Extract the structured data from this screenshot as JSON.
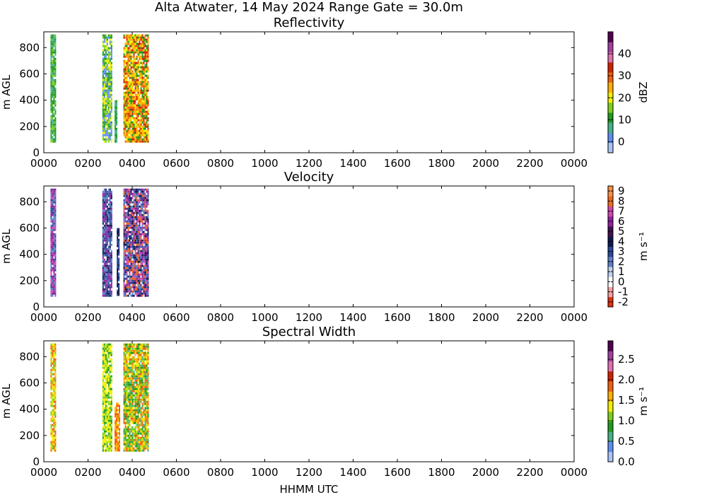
{
  "figure": {
    "title": "Alta Atwater, 14 May 2024 Range Gate = 30.0m",
    "xlabel": "HHMM UTC"
  },
  "chart_data": [
    {
      "type": "heatmap",
      "title": "Reflectivity",
      "xlabel": "",
      "ylabel": "m AGL",
      "xlim": [
        0,
        2400
      ],
      "ylim": [
        0,
        920
      ],
      "x_ticks": [
        "0000",
        "0200",
        "0400",
        "0600",
        "0800",
        "1000",
        "1200",
        "1400",
        "1600",
        "1800",
        "2000",
        "2200",
        "0000"
      ],
      "y_ticks": [
        0,
        200,
        400,
        600,
        800
      ],
      "colorbar": {
        "label": "dBZ",
        "range": [
          -5,
          50
        ],
        "ticks": [
          "0",
          "10",
          "20",
          "30",
          "40"
        ],
        "tick_values": [
          0,
          10,
          20,
          30,
          40
        ],
        "colors": [
          "#a8c4f8",
          "#5c8ef0",
          "#48b088",
          "#1f9a1f",
          "#7ccf1a",
          "#f0f000",
          "#ffb000",
          "#f06010",
          "#d02000",
          "#e070b0",
          "#a040a0",
          "#500050"
        ]
      },
      "bands": [
        {
          "x_start": 30,
          "x_end": 55,
          "y_bottom": 90,
          "y_top": 900,
          "colors": [
            "#1f9a1f",
            "#48b088",
            "#7ccf1a",
            "#1f9a1f"
          ]
        },
        {
          "x_start": 265,
          "x_end": 305,
          "y_bottom": 90,
          "y_top": 900,
          "colors": [
            "#7ccf1a",
            "#1f9a1f",
            "#5c8ef0",
            "#f0f000"
          ]
        },
        {
          "x_start": 320,
          "x_end": 330,
          "y_bottom": 90,
          "y_top": 400,
          "colors": [
            "#48b088",
            "#1f9a1f"
          ]
        },
        {
          "x_start": 360,
          "x_end": 470,
          "y_bottom": 90,
          "y_top": 900,
          "colors": [
            "#f0f000",
            "#ffb000",
            "#f06010",
            "#d02000",
            "#ffb000",
            "#1f9a1f"
          ]
        }
      ]
    },
    {
      "type": "heatmap",
      "title": "Velocity",
      "xlabel": "",
      "ylabel": "m AGL",
      "xlim": [
        0,
        2400
      ],
      "ylim": [
        0,
        920
      ],
      "x_ticks": [
        "0000",
        "0200",
        "0400",
        "0600",
        "0800",
        "1000",
        "1200",
        "1400",
        "1600",
        "1800",
        "2000",
        "2200",
        "0000"
      ],
      "y_ticks": [
        0,
        200,
        400,
        600,
        800
      ],
      "colorbar": {
        "label": "m s⁻¹",
        "range": [
          -2.5,
          9.5
        ],
        "ticks": [
          "-2",
          "-1",
          "0",
          "1",
          "2",
          "3",
          "4",
          "5",
          "6",
          "7",
          "8",
          "9"
        ],
        "tick_values": [
          -2,
          -1,
          0,
          1,
          2,
          3,
          4,
          5,
          6,
          7,
          8,
          9
        ],
        "colors": [
          "#e03010",
          "#f4a0a0",
          "#ffffff",
          "#c0d0ee",
          "#5c80c8",
          "#284898",
          "#101850",
          "#401050",
          "#9020a0",
          "#d048b0",
          "#f06820",
          "#f89048"
        ]
      },
      "bands": [
        {
          "x_start": 30,
          "x_end": 55,
          "y_bottom": 90,
          "y_top": 900,
          "colors": [
            "#9020a0",
            "#d048b0",
            "#284898",
            "#5c80c8"
          ]
        },
        {
          "x_start": 265,
          "x_end": 305,
          "y_bottom": 90,
          "y_top": 900,
          "colors": [
            "#284898",
            "#101850",
            "#9020a0",
            "#5c80c8"
          ]
        },
        {
          "x_start": 330,
          "x_end": 340,
          "y_bottom": 90,
          "y_top": 600,
          "colors": [
            "#101850",
            "#284898"
          ]
        },
        {
          "x_start": 360,
          "x_end": 470,
          "y_bottom": 90,
          "y_top": 900,
          "colors": [
            "#f06820",
            "#d048b0",
            "#9020a0",
            "#101850",
            "#284898",
            "#5c80c8"
          ]
        }
      ]
    },
    {
      "type": "heatmap",
      "title": "Spectral Width",
      "xlabel": "HHMM UTC",
      "ylabel": "m AGL",
      "xlim": [
        0,
        2400
      ],
      "ylim": [
        0,
        920
      ],
      "x_ticks": [
        "0000",
        "0200",
        "0400",
        "0600",
        "0800",
        "1000",
        "1200",
        "1400",
        "1600",
        "1800",
        "2000",
        "2200",
        "0000"
      ],
      "y_ticks": [
        0,
        200,
        400,
        600,
        800
      ],
      "colorbar": {
        "label": "m s⁻¹",
        "range": [
          0,
          2.95
        ],
        "ticks": [
          "0.0",
          "0.5",
          "1.0",
          "1.5",
          "2.0",
          "2.5"
        ],
        "tick_values": [
          0,
          0.5,
          1.0,
          1.5,
          2.0,
          2.5
        ],
        "colors": [
          "#a8c4f8",
          "#5c8ef0",
          "#48b088",
          "#1f9a1f",
          "#7ccf1a",
          "#f0f000",
          "#ffb000",
          "#f06010",
          "#d02000",
          "#e070b0",
          "#a040a0",
          "#500050"
        ]
      },
      "bands": [
        {
          "x_start": 30,
          "x_end": 55,
          "y_bottom": 90,
          "y_top": 900,
          "colors": [
            "#f0f000",
            "#f06010",
            "#ffb000",
            "#7ccf1a"
          ]
        },
        {
          "x_start": 265,
          "x_end": 305,
          "y_bottom": 90,
          "y_top": 900,
          "colors": [
            "#f0f000",
            "#7ccf1a",
            "#1f9a1f",
            "#f0f000"
          ]
        },
        {
          "x_start": 320,
          "x_end": 340,
          "y_bottom": 90,
          "y_top": 450,
          "colors": [
            "#ffb000",
            "#f06010"
          ]
        },
        {
          "x_start": 360,
          "x_end": 470,
          "y_bottom": 90,
          "y_top": 900,
          "colors": [
            "#f06010",
            "#ffb000",
            "#f0f000",
            "#1f9a1f",
            "#7ccf1a",
            "#48b088"
          ]
        }
      ]
    }
  ]
}
